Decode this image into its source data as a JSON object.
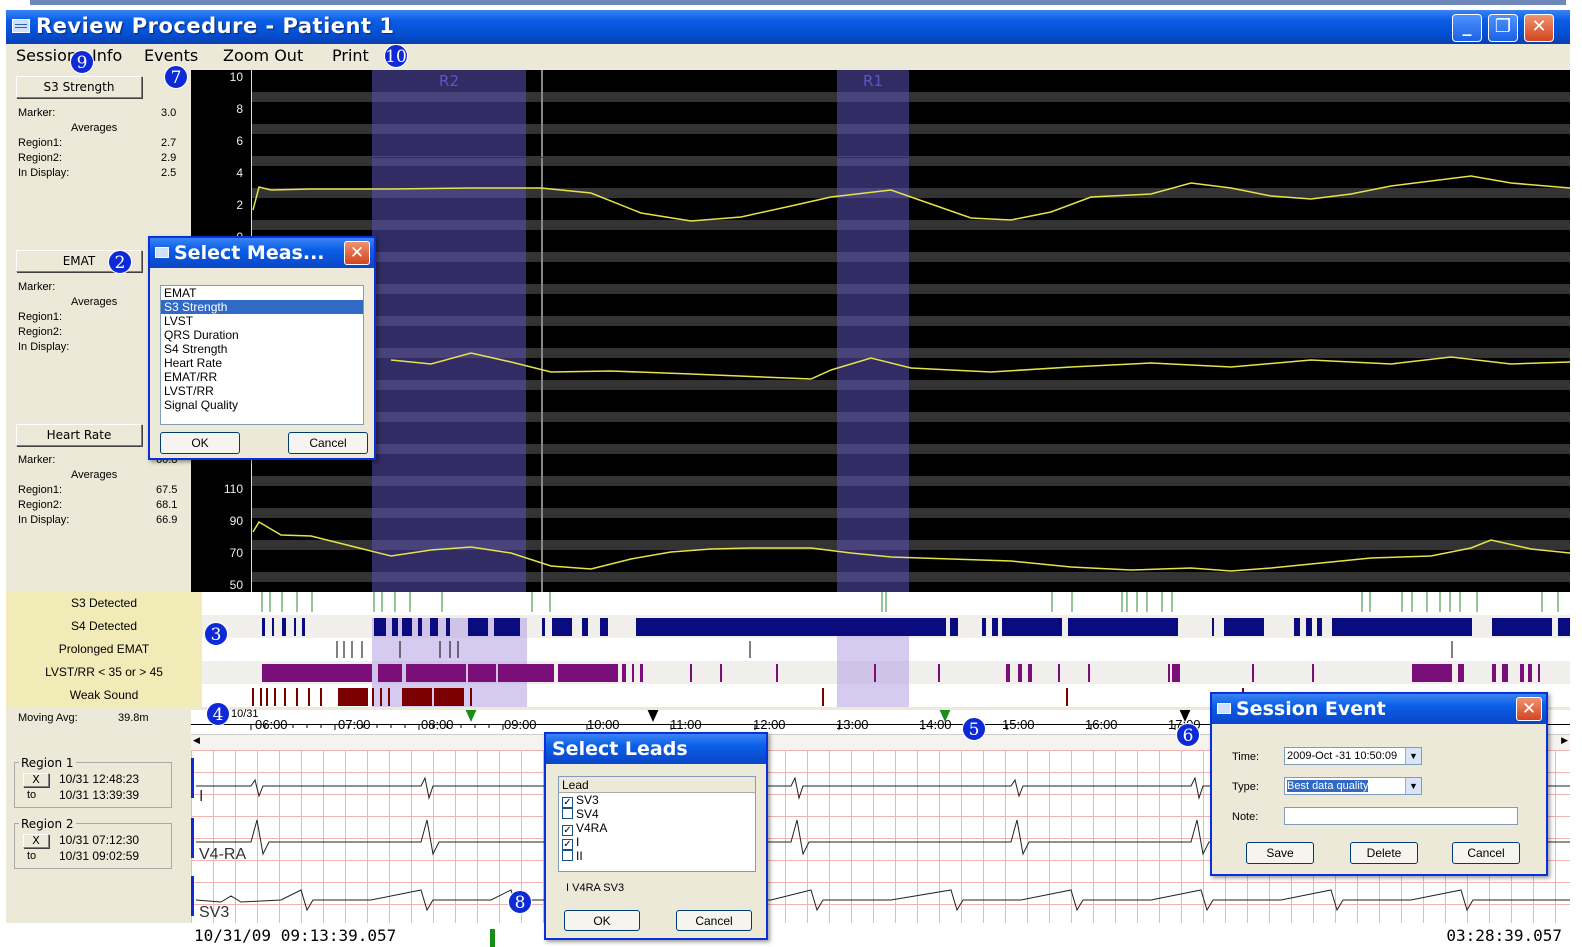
{
  "window": {
    "title": "Review Procedure - Patient 1",
    "minimize": "_",
    "maximize": "❐",
    "close": "✕"
  },
  "menu": [
    "Session",
    "Info",
    "Events",
    "Zoom Out",
    "Print"
  ],
  "badges": [
    "9",
    "7",
    "10",
    "2",
    "3",
    "4",
    "5",
    "6",
    "8"
  ],
  "panels": [
    {
      "button": "S3 Strength",
      "marker_label": "Marker:",
      "marker": "3.0",
      "averages": "Averages",
      "region1_label": "Region1:",
      "region1": "2.7",
      "region2_label": "Region2:",
      "region2": "2.9",
      "display_label": "In Display:",
      "display": "2.5"
    },
    {
      "button": "EMAT",
      "marker_label": "Marker:",
      "averages": "Averages",
      "region1_label": "Region1:",
      "region2_label": "Region2:",
      "display_label": "In Display:"
    },
    {
      "button": "Heart Rate",
      "marker_label": "Marker:",
      "marker": "60.8",
      "averages": "Averages",
      "region1_label": "Region1:",
      "region1": "67.5",
      "region2_label": "Region2:",
      "region2": "68.1",
      "display_label": "In Display:",
      "display": "66.9"
    }
  ],
  "plot": {
    "regions": [
      "R2",
      "R1"
    ],
    "y_labels_top": [
      "10",
      "8",
      "6",
      "4",
      "2",
      "0"
    ],
    "y_labels_bottom": [
      "110",
      "90",
      "70",
      "50"
    ]
  },
  "event_rows": [
    "S3 Detected",
    "S4 Detected",
    "Prolonged EMAT",
    "LVST/RR < 35 or > 45",
    "Weak Sound"
  ],
  "moving_avg": {
    "label": "Moving Avg:",
    "value": "39.8m"
  },
  "timeline": {
    "date_prefix": "10/31",
    "ticks": [
      "06:00",
      "07:00",
      "08:00",
      "09:00",
      "10:00",
      "11:00",
      "12:00",
      "13:00",
      "14:00",
      "15:00",
      "16:00",
      "17:00"
    ]
  },
  "regions": [
    {
      "title": "Region 1",
      "x": "X",
      "from": "10/31 12:48:23",
      "to_label": "to",
      "to": "10/31 13:39:39"
    },
    {
      "title": "Region 2",
      "x": "X",
      "from": "10/31 07:12:30",
      "to_label": "to",
      "to": "10/31 09:02:59"
    }
  ],
  "leads": [
    "I",
    "V4-RA",
    "SV3"
  ],
  "status": {
    "left": "10/31/09 09:13:39.057",
    "right": "03:28:39.057"
  },
  "select_meas": {
    "title": "Select Meas...",
    "items": [
      "EMAT",
      "S3 Strength",
      "LVST",
      "QRS Duration",
      "S4 Strength",
      "Heart Rate",
      "EMAT/RR",
      "LVST/RR",
      "Signal Quality"
    ],
    "selected": "S3 Strength",
    "ok": "OK",
    "cancel": "Cancel"
  },
  "select_leads": {
    "title": "Select Leads",
    "header": "Lead",
    "items": [
      {
        "label": "SV3",
        "checked": true
      },
      {
        "label": "SV4",
        "checked": false
      },
      {
        "label": "V4RA",
        "checked": true
      },
      {
        "label": "I",
        "checked": true
      },
      {
        "label": "II",
        "checked": false
      }
    ],
    "summary": "I V4RA SV3",
    "ok": "OK",
    "cancel": "Cancel"
  },
  "session_event": {
    "title": "Session Event",
    "time_label": "Time:",
    "time_value": "2009-Oct -31 10:50:09",
    "type_label": "Type:",
    "type_value": "Best data quality",
    "note_label": "Note:",
    "note_value": "",
    "save": "Save",
    "delete": "Delete",
    "cancel": "Cancel"
  },
  "colors": {
    "title_blue": "#0a5ee6",
    "trace": "#e5e34a",
    "s3": "#2e8b2e",
    "s4": "#0b0b80",
    "emat": "#000000",
    "lvst": "#7a0f7a",
    "weak": "#7a0000",
    "region": "#b9a6e6",
    "badge": "#0d2ad6"
  }
}
